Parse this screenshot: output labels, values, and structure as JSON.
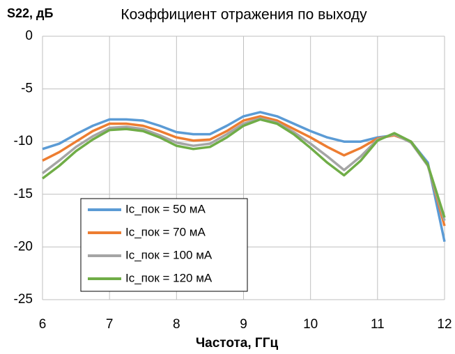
{
  "chart_data": {
    "type": "line",
    "title": "Коэффициент отражения по выходу",
    "ylabel": "S22, дБ",
    "xlabel": "Частота, ГГц",
    "x": [
      6,
      6.25,
      6.5,
      6.75,
      7,
      7.25,
      7.5,
      7.75,
      8,
      8.25,
      8.5,
      8.75,
      9,
      9.25,
      9.5,
      9.75,
      10,
      10.25,
      10.5,
      10.75,
      11,
      11.25,
      11.5,
      11.75,
      12
    ],
    "series": [
      {
        "name": "Ic_пок = 50 мА",
        "color": "#5b9bd5",
        "values": [
          -10.7,
          -10.2,
          -9.3,
          -8.5,
          -7.9,
          -7.9,
          -8.0,
          -8.5,
          -9.1,
          -9.3,
          -9.3,
          -8.5,
          -7.6,
          -7.2,
          -7.6,
          -8.3,
          -9.0,
          -9.6,
          -10.0,
          -10.0,
          -9.6,
          -9.4,
          -10.0,
          -12.0,
          -19.5
        ]
      },
      {
        "name": "Ic_пок = 70 мА",
        "color": "#ed7d31",
        "values": [
          -11.8,
          -11.0,
          -10.0,
          -9.0,
          -8.3,
          -8.3,
          -8.5,
          -9.0,
          -9.6,
          -9.9,
          -9.8,
          -9.0,
          -8.0,
          -7.6,
          -8.0,
          -8.8,
          -9.6,
          -10.5,
          -11.3,
          -10.6,
          -9.7,
          -9.4,
          -10.0,
          -12.2,
          -18.0
        ]
      },
      {
        "name": "Ic_пок = 100 мА",
        "color": "#a5a5a5",
        "values": [
          -13.0,
          -11.8,
          -10.5,
          -9.5,
          -8.7,
          -8.6,
          -8.8,
          -9.4,
          -10.1,
          -10.4,
          -10.2,
          -9.3,
          -8.3,
          -7.8,
          -8.2,
          -9.1,
          -10.2,
          -11.4,
          -12.7,
          -11.4,
          -9.8,
          -9.3,
          -10.1,
          -12.3,
          -17.5
        ]
      },
      {
        "name": "Ic_пок = 120 мА",
        "color": "#70ad47",
        "values": [
          -13.5,
          -12.3,
          -10.9,
          -9.8,
          -8.9,
          -8.8,
          -9.0,
          -9.6,
          -10.4,
          -10.7,
          -10.5,
          -9.6,
          -8.5,
          -7.9,
          -8.3,
          -9.3,
          -10.6,
          -12.0,
          -13.2,
          -11.8,
          -9.9,
          -9.2,
          -10.0,
          -12.2,
          -17.2
        ]
      }
    ],
    "xlim": [
      6,
      12
    ],
    "ylim": [
      -25,
      0
    ],
    "xticks": [
      6,
      7,
      8,
      9,
      10,
      11,
      12
    ],
    "yticks": [
      0,
      -5,
      -10,
      -15,
      -20,
      -25
    ],
    "grid": true,
    "legend": "lower left"
  }
}
